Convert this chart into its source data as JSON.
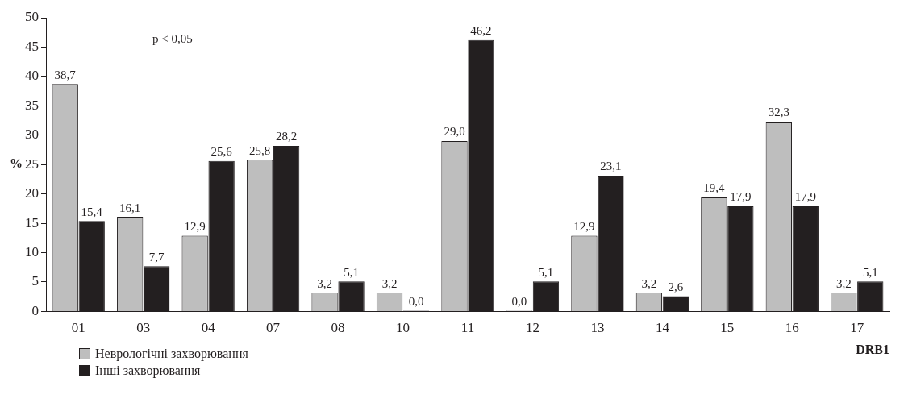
{
  "chart_data": {
    "type": "bar",
    "ylabel": "%",
    "xlabel": "DRB1",
    "annotations": [
      "p < 0,05"
    ],
    "categories": [
      "01",
      "03",
      "04",
      "07",
      "08",
      "10",
      "11",
      "12",
      "13",
      "14",
      "15",
      "16",
      "17"
    ],
    "series": [
      {
        "name": "Неврологічні захворювання",
        "color": "#bebebe",
        "values": [
          38.7,
          16.1,
          12.9,
          25.8,
          3.2,
          3.2,
          29.0,
          0.0,
          12.9,
          3.2,
          19.4,
          32.3,
          3.2
        ],
        "value_labels": [
          "38,7",
          "16,1",
          "12,9",
          "25,8",
          "3,2",
          "3,2",
          "29,0",
          "0,0",
          "12,9",
          "3,2",
          "19,4",
          "32,3",
          "3,2"
        ]
      },
      {
        "name": "Інші захворювання",
        "color": "#231f20",
        "values": [
          15.4,
          7.7,
          25.6,
          28.2,
          5.1,
          0.0,
          46.2,
          5.1,
          23.1,
          2.6,
          17.9,
          17.9,
          5.1
        ],
        "value_labels": [
          "15,4",
          "7,7",
          "25,6",
          "28,2",
          "5,1",
          "0,0",
          "46,2",
          "5,1",
          "23,1",
          "2,6",
          "17,9",
          "17,9",
          "5,1"
        ]
      }
    ],
    "ylim": [
      0,
      50
    ],
    "yticks": [
      0,
      5,
      10,
      15,
      20,
      25,
      30,
      35,
      40,
      45,
      50
    ],
    "grid": false,
    "legend": "bottom left"
  }
}
